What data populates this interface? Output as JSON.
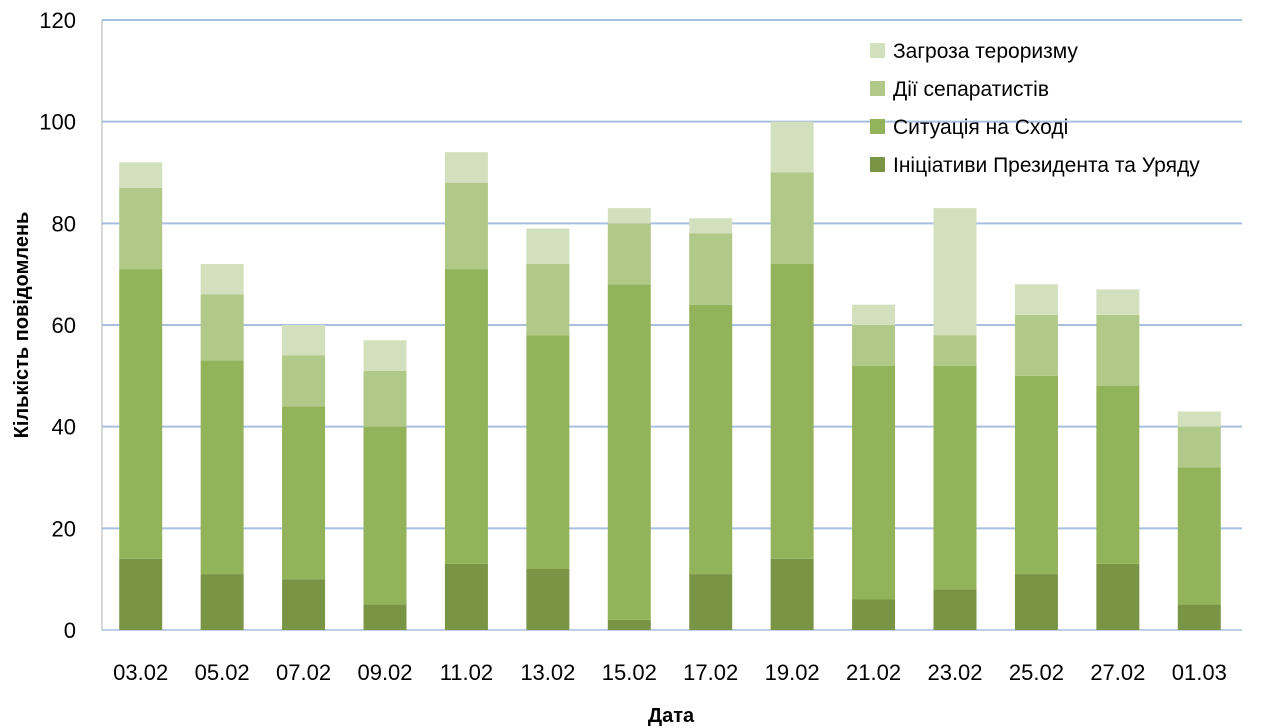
{
  "chart_data": {
    "type": "bar",
    "stacked": true,
    "xlabel": "Дата",
    "ylabel": "Кількість повідомлень",
    "ylim": [
      0,
      120
    ],
    "yticks": [
      0,
      20,
      40,
      60,
      80,
      100,
      120
    ],
    "grid": true,
    "legend_position": "top-right",
    "categories": [
      "03.02",
      "05.02",
      "07.02",
      "09.02",
      "11.02",
      "13.02",
      "15.02",
      "17.02",
      "19.02",
      "21.02",
      "23.02",
      "25.02",
      "27.02",
      "01.03"
    ],
    "series": [
      {
        "name": "Ініціативи Президента та Уряду",
        "color": "#7a9445",
        "values": [
          14,
          11,
          10,
          5,
          13,
          12,
          2,
          11,
          14,
          6,
          8,
          11,
          13,
          5
        ]
      },
      {
        "name": "Ситуація на Сході",
        "color": "#93b35a",
        "values": [
          57,
          42,
          34,
          35,
          58,
          46,
          66,
          53,
          58,
          46,
          44,
          39,
          35,
          27
        ]
      },
      {
        "name": "Дії сепаратистів",
        "color": "#b0c888",
        "values": [
          16,
          13,
          10,
          11,
          17,
          14,
          12,
          14,
          18,
          8,
          6,
          12,
          14,
          8
        ]
      },
      {
        "name": "Загроза тероризму",
        "color": "#d3e0be",
        "values": [
          5,
          6,
          6,
          6,
          6,
          7,
          3,
          3,
          10,
          4,
          25,
          6,
          5,
          3
        ]
      }
    ]
  }
}
